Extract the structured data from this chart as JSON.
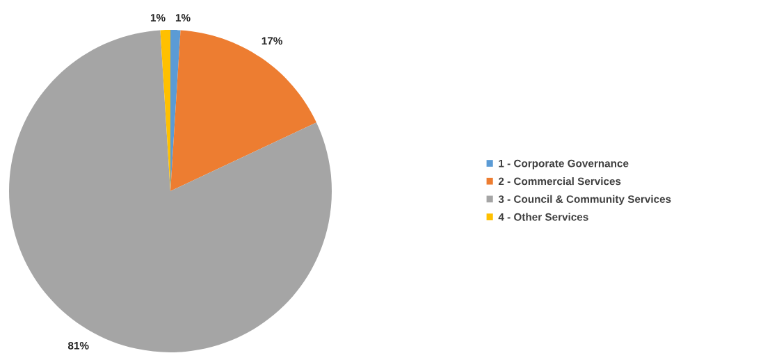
{
  "chart_data": {
    "type": "pie",
    "categories": [
      "1 - Corporate Governance",
      "2 - Commercial Services",
      "3 - Council & Community Services",
      "4 - Other Services"
    ],
    "values": [
      1,
      17,
      81,
      1
    ],
    "colors": [
      "#5b9bd5",
      "#ed7d31",
      "#a5a5a5",
      "#ffc000"
    ],
    "value_labels": [
      "1%",
      "17%",
      "81%",
      "1%"
    ],
    "legend": "right"
  }
}
